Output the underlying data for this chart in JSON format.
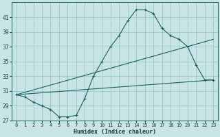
{
  "xlabel": "Humidex (Indice chaleur)",
  "bg_color": "#c8e4e4",
  "grid_color": "#98c8c8",
  "line_color": "#1a6060",
  "xlim": [
    -0.5,
    23.5
  ],
  "ylim": [
    27,
    43
  ],
  "yticks": [
    27,
    29,
    31,
    33,
    35,
    37,
    39,
    41
  ],
  "xticks": [
    0,
    1,
    2,
    3,
    4,
    5,
    6,
    7,
    8,
    9,
    10,
    11,
    12,
    13,
    14,
    15,
    16,
    17,
    18,
    19,
    20,
    21,
    22,
    23
  ],
  "series_main": {
    "x": [
      0,
      1,
      2,
      3,
      4,
      5,
      6,
      7,
      8,
      9,
      10,
      11,
      12,
      13,
      14,
      15,
      16,
      17,
      18,
      19,
      20,
      21,
      22,
      23
    ],
    "y": [
      30.5,
      30.2,
      29.5,
      29.0,
      28.5,
      27.5,
      27.5,
      27.7,
      30.0,
      33.0,
      35.0,
      37.0,
      38.5,
      40.5,
      42.0,
      42.0,
      41.5,
      39.5,
      38.5,
      38.0,
      37.0,
      34.5,
      32.5,
      32.5
    ]
  },
  "series_upper": {
    "x": [
      0,
      23
    ],
    "y": [
      30.5,
      38.0
    ]
  },
  "series_lower": {
    "x": [
      0,
      23
    ],
    "y": [
      30.5,
      32.5
    ]
  }
}
